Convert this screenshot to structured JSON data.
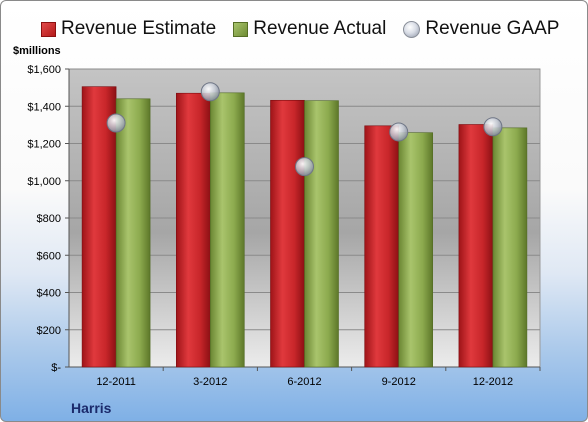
{
  "legend": {
    "estimate": "Revenue Estimate",
    "actual": "Revenue Actual",
    "gaap": "Revenue GAAP"
  },
  "unit_label": "$millions",
  "company": "Harris",
  "colors": {
    "estimate": "#c8262a",
    "actual": "#8caa4e",
    "gaap": "#c9ced8",
    "plot_bg_top": "#c4c4c4",
    "plot_bg_bottom": "#ececec"
  },
  "chart_data": {
    "type": "bar",
    "categories": [
      "12-2011",
      "3-2012",
      "6-2012",
      "9-2012",
      "12-2012"
    ],
    "series": [
      {
        "name": "Revenue Estimate",
        "values": [
          1505,
          1470,
          1432,
          1295,
          1302
        ]
      },
      {
        "name": "Revenue Actual",
        "values": [
          1440,
          1472,
          1430,
          1258,
          1284
        ]
      },
      {
        "name": "Revenue GAAP",
        "values": [
          1310,
          1478,
          1076,
          1262,
          1290
        ]
      }
    ],
    "ylabel": "$millions",
    "ylim": [
      0,
      1600
    ],
    "yticks": [
      0,
      200,
      400,
      600,
      800,
      1000,
      1200,
      1400,
      1600
    ],
    "ytick_labels": [
      "$-",
      "$200",
      "$400",
      "$600",
      "$800",
      "$1,000",
      "$1,200",
      "$1,400",
      "$1,600"
    ],
    "grid": true,
    "legend_position": "top"
  }
}
